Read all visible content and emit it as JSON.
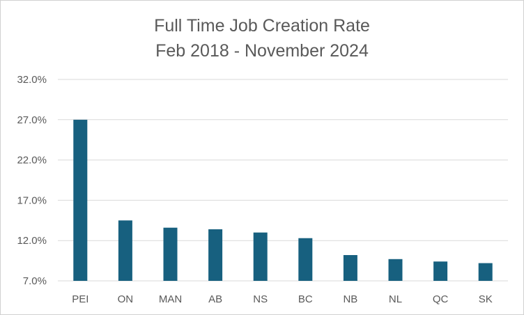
{
  "chart_data": {
    "type": "bar",
    "title": [
      "Full Time Job Creation Rate",
      "Feb 2018 - November 2024"
    ],
    "xlabel": "",
    "ylabel": "",
    "categories": [
      "PEI",
      "ON",
      "MAN",
      "AB",
      "NS",
      "BC",
      "NB",
      "NL",
      "QC",
      "SK"
    ],
    "values": [
      27.0,
      14.5,
      13.6,
      13.4,
      13.0,
      12.3,
      10.2,
      9.7,
      9.4,
      9.2
    ],
    "ylim": [
      7.0,
      32.0
    ],
    "yticks": [
      7.0,
      12.0,
      17.0,
      22.0,
      27.0,
      32.0
    ],
    "ytick_labels": [
      "7.0%",
      "12.0%",
      "17.0%",
      "22.0%",
      "27.0%",
      "32.0%"
    ],
    "grid": true,
    "legend": "none",
    "colors": {
      "bar": "#17607f",
      "grid": "#d9d9d9",
      "text": "#595959"
    }
  }
}
